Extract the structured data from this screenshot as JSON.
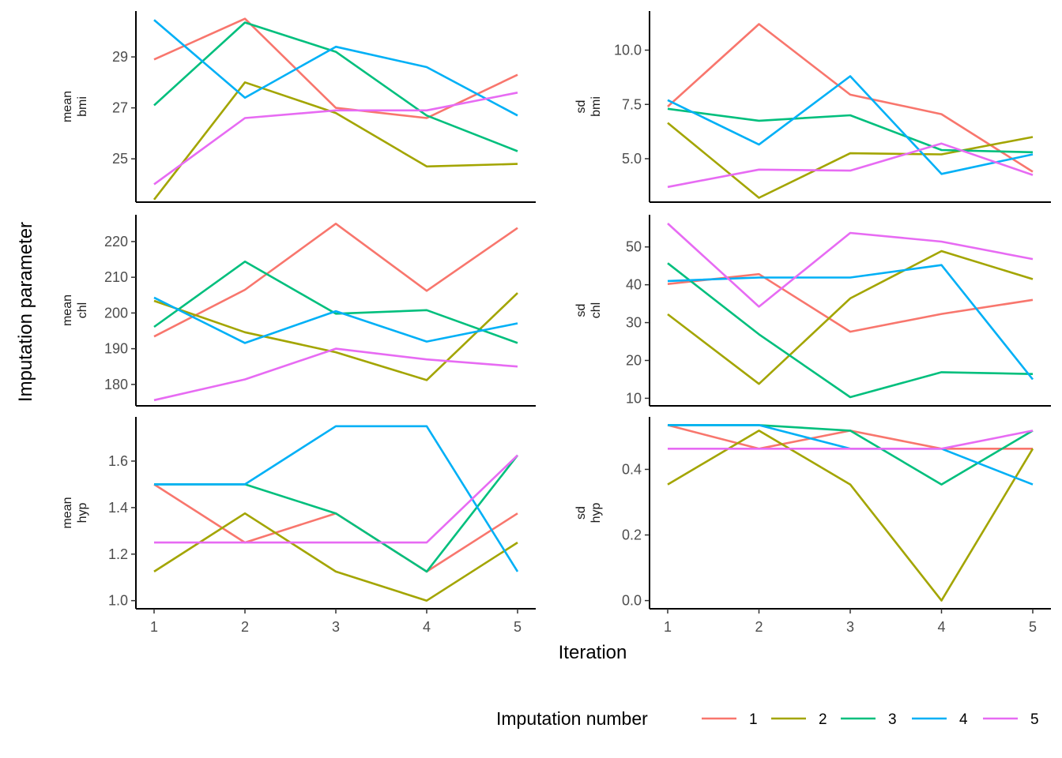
{
  "chart_data": {
    "type": "line",
    "xlabel": "Iteration",
    "ylabel": "Imputation parameter",
    "x": [
      1,
      2,
      3,
      4,
      5
    ],
    "x_ticks": [
      "1",
      "2",
      "3",
      "4",
      "5"
    ],
    "legend": {
      "title": "Imputation number",
      "position": "bottom-right",
      "entries": [
        {
          "label": "1",
          "color": "#F8766D"
        },
        {
          "label": "2",
          "color": "#A3A500"
        },
        {
          "label": "3",
          "color": "#00BF7D"
        },
        {
          "label": "4",
          "color": "#00B0F6"
        },
        {
          "label": "5",
          "color": "#E76BF3"
        }
      ]
    },
    "grid": false,
    "panels": [
      {
        "id": "mean-bmi",
        "strip": [
          "mean",
          "bmi"
        ],
        "ylim": [
          23.3,
          30.8
        ],
        "y_ticks": [
          25,
          27,
          29
        ],
        "y_tick_labels": [
          "25",
          "27",
          "29"
        ],
        "series": [
          {
            "name": "1",
            "values": [
              28.9,
              30.5,
              27.0,
              26.6,
              28.3
            ]
          },
          {
            "name": "2",
            "values": [
              23.4,
              28.0,
              26.8,
              24.7,
              24.8
            ]
          },
          {
            "name": "3",
            "values": [
              27.1,
              30.35,
              29.2,
              26.7,
              25.3
            ]
          },
          {
            "name": "4",
            "values": [
              30.45,
              27.4,
              29.4,
              28.6,
              26.7
            ]
          },
          {
            "name": "5",
            "values": [
              24.0,
              26.6,
              26.9,
              26.9,
              27.6
            ]
          }
        ]
      },
      {
        "id": "sd-bmi",
        "strip": [
          "sd",
          "bmi"
        ],
        "ylim": [
          3.0,
          11.8
        ],
        "y_ticks": [
          5.0,
          7.5,
          10.0
        ],
        "y_tick_labels": [
          "5.0",
          "7.5",
          "10.0"
        ],
        "series": [
          {
            "name": "1",
            "values": [
              7.4,
              11.2,
              7.95,
              7.05,
              4.4
            ]
          },
          {
            "name": "2",
            "values": [
              6.65,
              3.2,
              5.25,
              5.2,
              6.0
            ]
          },
          {
            "name": "3",
            "values": [
              7.3,
              6.75,
              7.0,
              5.4,
              5.3
            ]
          },
          {
            "name": "4",
            "values": [
              7.7,
              5.65,
              8.8,
              4.3,
              5.2
            ]
          },
          {
            "name": "5",
            "values": [
              3.7,
              4.5,
              4.45,
              5.7,
              4.25
            ]
          }
        ]
      },
      {
        "id": "mean-chl",
        "strip": [
          "mean",
          "chl"
        ],
        "ylim": [
          174.0,
          227.5
        ],
        "y_ticks": [
          180,
          190,
          200,
          210,
          220
        ],
        "y_tick_labels": [
          "180",
          "190",
          "200",
          "210",
          "220"
        ],
        "series": [
          {
            "name": "1",
            "values": [
              193.4,
              206.5,
              225.0,
              206.2,
              223.8
            ]
          },
          {
            "name": "2",
            "values": [
              203.4,
              194.6,
              189.0,
              181.2,
              205.6
            ]
          },
          {
            "name": "3",
            "values": [
              196.1,
              214.4,
              199.8,
              200.8,
              191.6
            ]
          },
          {
            "name": "4",
            "values": [
              204.3,
              191.6,
              200.5,
              192.0,
              197.1
            ]
          },
          {
            "name": "5",
            "values": [
              175.6,
              181.4,
              190.0,
              187.0,
              185.0
            ]
          }
        ]
      },
      {
        "id": "sd-chl",
        "strip": [
          "sd",
          "chl"
        ],
        "ylim": [
          8.0,
          58.5
        ],
        "y_ticks": [
          10,
          20,
          30,
          40,
          50
        ],
        "y_tick_labels": [
          "10",
          "20",
          "30",
          "40",
          "50"
        ],
        "series": [
          {
            "name": "1",
            "values": [
              40.2,
              42.8,
              27.6,
              32.3,
              36.0
            ]
          },
          {
            "name": "2",
            "values": [
              32.2,
              13.8,
              36.4,
              48.9,
              41.5
            ]
          },
          {
            "name": "3",
            "values": [
              45.7,
              26.9,
              10.3,
              16.9,
              16.4
            ]
          },
          {
            "name": "4",
            "values": [
              41.0,
              41.9,
              41.9,
              45.2,
              15.0
            ]
          },
          {
            "name": "5",
            "values": [
              56.2,
              34.2,
              53.7,
              51.4,
              46.8
            ]
          }
        ]
      },
      {
        "id": "mean-hyp",
        "strip": [
          "mean",
          "hyp"
        ],
        "ylim": [
          0.965,
          1.79
        ],
        "y_ticks": [
          1.0,
          1.2,
          1.4,
          1.6
        ],
        "y_tick_labels": [
          "1.0",
          "1.2",
          "1.4",
          "1.6"
        ],
        "series": [
          {
            "name": "1",
            "values": [
              1.5,
              1.25,
              1.375,
              1.125,
              1.375
            ]
          },
          {
            "name": "2",
            "values": [
              1.125,
              1.375,
              1.125,
              1.0,
              1.25
            ]
          },
          {
            "name": "3",
            "values": [
              1.5,
              1.5,
              1.375,
              1.125,
              1.625
            ]
          },
          {
            "name": "4",
            "values": [
              1.5,
              1.5,
              1.75,
              1.75,
              1.125
            ]
          },
          {
            "name": "5",
            "values": [
              1.25,
              1.25,
              1.25,
              1.25,
              1.625
            ]
          }
        ]
      },
      {
        "id": "sd-hyp",
        "strip": [
          "sd",
          "hyp"
        ],
        "ylim": [
          -0.025,
          0.56
        ],
        "y_ticks": [
          0.0,
          0.2,
          0.4
        ],
        "y_tick_labels": [
          "0.0",
          "0.2",
          "0.4"
        ],
        "series": [
          {
            "name": "1",
            "values": [
              0.535,
              0.463,
              0.518,
              0.463,
              0.463
            ]
          },
          {
            "name": "2",
            "values": [
              0.354,
              0.518,
              0.354,
              0.0,
              0.463
            ]
          },
          {
            "name": "3",
            "values": [
              0.535,
              0.535,
              0.518,
              0.354,
              0.518
            ]
          },
          {
            "name": "4",
            "values": [
              0.535,
              0.535,
              0.463,
              0.463,
              0.354
            ]
          },
          {
            "name": "5",
            "values": [
              0.463,
              0.463,
              0.463,
              0.463,
              0.518
            ]
          }
        ]
      }
    ]
  }
}
